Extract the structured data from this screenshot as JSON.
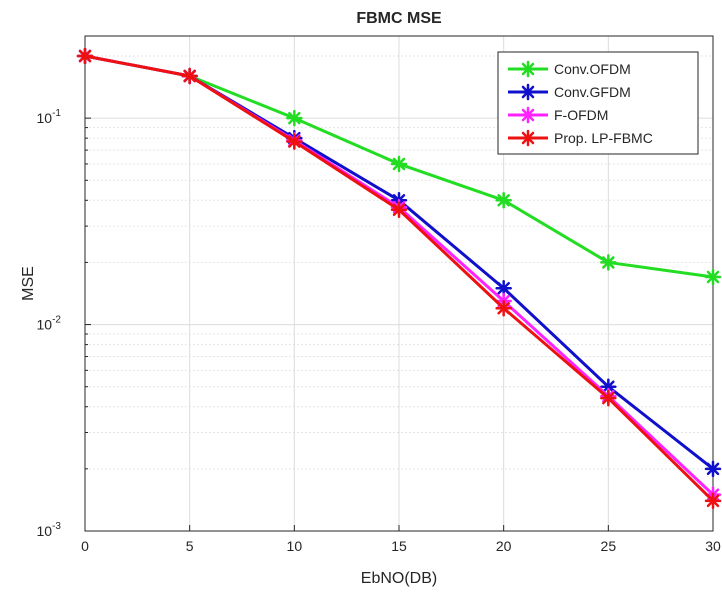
{
  "chart_data": {
    "type": "line",
    "title": "FBMC MSE",
    "xlabel": "EbNO(DB)",
    "ylabel": "MSE",
    "x": [
      0,
      5,
      10,
      15,
      20,
      25,
      30
    ],
    "xlim": [
      0,
      30
    ],
    "ylim": [
      0.001,
      0.25
    ],
    "yscale": "log",
    "grid": true,
    "legend_position": "top-right",
    "xticks": [
      "0",
      "5",
      "10",
      "15",
      "20",
      "25",
      "30"
    ],
    "yticks": [
      {
        "base": "10",
        "exp": "-1",
        "value": 0.1
      },
      {
        "base": "10",
        "exp": "-2",
        "value": 0.01
      },
      {
        "base": "10",
        "exp": "-3",
        "value": 0.001
      }
    ],
    "series": [
      {
        "name": "Conv.OFDM",
        "color": "#22dd22",
        "values": [
          0.2,
          0.16,
          0.1,
          0.06,
          0.04,
          0.02,
          0.017
        ]
      },
      {
        "name": "Conv.GFDM",
        "color": "#1010cc",
        "values": [
          0.2,
          0.16,
          0.08,
          0.04,
          0.015,
          0.005,
          0.002
        ]
      },
      {
        "name": "F-OFDM",
        "color": "#ff22ff",
        "values": [
          0.2,
          0.16,
          0.078,
          0.037,
          0.013,
          0.0045,
          0.0015
        ]
      },
      {
        "name": "Prop. LP-FBMC",
        "color": "#ee1111",
        "values": [
          0.2,
          0.16,
          0.077,
          0.036,
          0.012,
          0.0044,
          0.0014
        ]
      }
    ]
  }
}
